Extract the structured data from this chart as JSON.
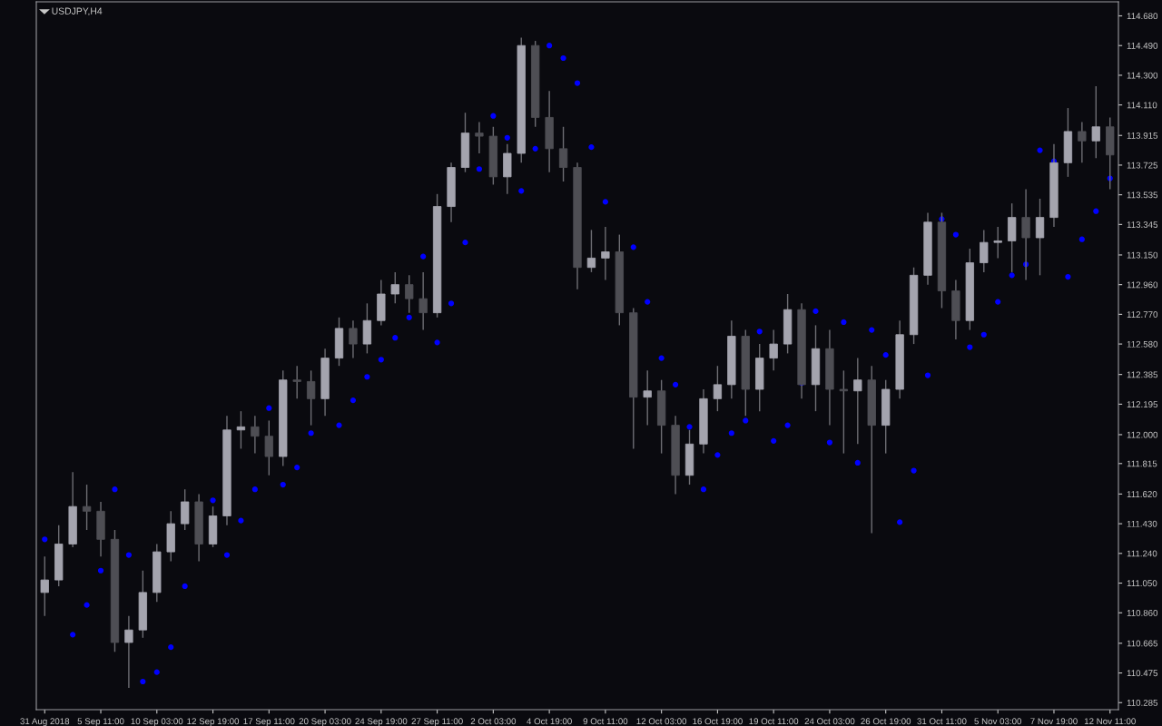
{
  "chart_data": {
    "type": "candlestick",
    "title": "USDJPY,H4",
    "categories": [
      "31 Aug 2018",
      null,
      null,
      null,
      "5 Sep 11:00",
      null,
      null,
      null,
      "10 Sep 03:00",
      null,
      null,
      null,
      "12 Sep 19:00",
      null,
      null,
      null,
      "17 Sep 11:00",
      null,
      null,
      null,
      "20 Sep 03:00",
      null,
      null,
      null,
      "24 Sep 19:00",
      null,
      null,
      null,
      "27 Sep 11:00",
      null,
      null,
      null,
      "2 Oct 03:00",
      null,
      null,
      null,
      "4 Oct 19:00",
      null,
      null,
      null,
      "9 Oct 11:00",
      null,
      null,
      null,
      "12 Oct 03:00",
      null,
      null,
      null,
      "16 Oct 19:00",
      null,
      null,
      null,
      "19 Oct 11:00",
      null,
      null,
      null,
      "24 Oct 03:00",
      null,
      null,
      null,
      "26 Oct 19:00",
      null,
      null,
      null,
      "31 Oct 11:00",
      null,
      null,
      null,
      "5 Nov 03:00",
      null,
      null,
      null,
      "7 Nov 19:00",
      null,
      null,
      null,
      "12 Nov 11:00"
    ],
    "ohlc": [
      [
        110.99,
        111.22,
        110.84,
        111.07
      ],
      [
        111.07,
        111.42,
        111.03,
        111.3
      ],
      [
        111.3,
        111.76,
        111.28,
        111.54
      ],
      [
        111.54,
        111.68,
        111.39,
        111.51
      ],
      [
        111.51,
        111.57,
        111.22,
        111.33
      ],
      [
        111.33,
        111.39,
        110.61,
        110.67
      ],
      [
        110.67,
        110.84,
        110.38,
        110.75
      ],
      [
        110.75,
        111.13,
        110.7,
        110.99
      ],
      [
        110.99,
        111.3,
        110.93,
        111.25
      ],
      [
        111.25,
        111.51,
        111.19,
        111.43
      ],
      [
        111.43,
        111.65,
        111.39,
        111.57
      ],
      [
        111.57,
        111.62,
        111.19,
        111.3
      ],
      [
        111.3,
        111.54,
        111.28,
        111.48
      ],
      [
        111.48,
        112.12,
        111.42,
        112.03
      ],
      [
        112.03,
        112.15,
        111.91,
        112.05
      ],
      [
        112.05,
        112.12,
        111.88,
        111.99
      ],
      [
        111.99,
        112.09,
        111.74,
        111.86
      ],
      [
        111.86,
        112.41,
        111.8,
        112.35
      ],
      [
        112.35,
        112.44,
        112.23,
        112.34
      ],
      [
        112.34,
        112.41,
        112.06,
        112.23
      ],
      [
        112.23,
        112.55,
        112.12,
        112.49
      ],
      [
        112.49,
        112.75,
        112.44,
        112.68
      ],
      [
        112.68,
        112.73,
        112.49,
        112.58
      ],
      [
        112.58,
        112.84,
        112.52,
        112.73
      ],
      [
        112.73,
        112.99,
        112.7,
        112.9
      ],
      [
        112.9,
        113.04,
        112.84,
        112.96
      ],
      [
        112.96,
        113.02,
        112.78,
        112.87
      ],
      [
        112.87,
        113.04,
        112.67,
        112.78
      ],
      [
        112.78,
        113.54,
        112.75,
        113.46
      ],
      [
        113.46,
        113.74,
        113.36,
        113.71
      ],
      [
        113.71,
        114.06,
        113.68,
        113.93
      ],
      [
        113.93,
        114.0,
        113.8,
        113.91
      ],
      [
        113.91,
        113.97,
        113.6,
        113.65
      ],
      [
        113.65,
        113.86,
        113.54,
        113.8
      ],
      [
        113.8,
        114.54,
        113.74,
        114.49
      ],
      [
        114.49,
        114.52,
        113.97,
        114.03
      ],
      [
        114.03,
        114.2,
        113.68,
        113.83
      ],
      [
        113.83,
        113.97,
        113.62,
        113.71
      ],
      [
        113.71,
        113.74,
        112.93,
        113.07
      ],
      [
        113.07,
        113.31,
        113.04,
        113.13
      ],
      [
        113.13,
        113.33,
        112.99,
        113.17
      ],
      [
        113.17,
        113.28,
        112.7,
        112.78
      ],
      [
        112.78,
        112.81,
        111.91,
        112.24
      ],
      [
        112.24,
        112.41,
        112.06,
        112.28
      ],
      [
        112.28,
        112.35,
        111.88,
        112.06
      ],
      [
        112.06,
        112.12,
        111.62,
        111.74
      ],
      [
        111.74,
        112.03,
        111.68,
        111.94
      ],
      [
        111.94,
        112.29,
        111.88,
        112.23
      ],
      [
        112.23,
        112.44,
        112.15,
        112.32
      ],
      [
        112.32,
        112.73,
        112.23,
        112.63
      ],
      [
        112.63,
        112.67,
        112.12,
        112.29
      ],
      [
        112.29,
        112.58,
        112.15,
        112.49
      ],
      [
        112.49,
        112.67,
        112.41,
        112.58
      ],
      [
        112.58,
        112.9,
        112.52,
        112.8
      ],
      [
        112.8,
        112.84,
        112.23,
        112.32
      ],
      [
        112.32,
        112.7,
        112.15,
        112.55
      ],
      [
        112.55,
        112.67,
        112.06,
        112.29
      ],
      [
        112.29,
        112.41,
        111.88,
        112.28
      ],
      [
        112.28,
        112.49,
        111.94,
        112.35
      ],
      [
        112.35,
        112.44,
        111.37,
        112.06
      ],
      [
        112.06,
        112.35,
        111.88,
        112.29
      ],
      [
        112.29,
        112.73,
        112.23,
        112.64
      ],
      [
        112.64,
        113.07,
        112.58,
        113.02
      ],
      [
        113.02,
        113.42,
        112.96,
        113.36
      ],
      [
        113.36,
        113.42,
        112.81,
        112.92
      ],
      [
        112.92,
        112.99,
        112.61,
        112.73
      ],
      [
        112.73,
        113.19,
        112.67,
        113.1
      ],
      [
        113.1,
        113.31,
        113.04,
        113.23
      ],
      [
        113.23,
        113.33,
        113.13,
        113.24
      ],
      [
        113.24,
        113.48,
        113.04,
        113.39
      ],
      [
        113.39,
        113.57,
        112.99,
        113.26
      ],
      [
        113.26,
        113.51,
        113.02,
        113.39
      ],
      [
        113.39,
        113.86,
        113.33,
        113.74
      ],
      [
        113.74,
        114.09,
        113.65,
        113.94
      ],
      [
        113.94,
        114.0,
        113.74,
        113.88
      ],
      [
        113.88,
        114.23,
        113.77,
        113.97
      ],
      [
        113.97,
        114.03,
        113.57,
        113.79
      ]
    ],
    "series": [
      {
        "type": "scatter",
        "color": "#0000ff",
        "values": [
          111.33,
          null,
          110.72,
          110.91,
          111.13,
          111.65,
          111.23,
          110.42,
          110.48,
          110.64,
          111.03,
          null,
          111.58,
          111.23,
          111.45,
          111.65,
          112.17,
          111.68,
          111.79,
          112.01,
          null,
          112.06,
          112.22,
          112.37,
          112.48,
          112.62,
          112.75,
          113.14,
          112.59,
          112.84,
          113.23,
          113.7,
          114.04,
          113.9,
          113.56,
          113.83,
          114.49,
          114.41,
          114.25,
          113.84,
          113.49,
          null,
          113.2,
          112.85,
          112.49,
          112.32,
          112.05,
          111.65,
          111.87,
          112.01,
          112.09,
          112.66,
          111.96,
          112.06,
          112.33,
          112.79,
          111.95,
          112.72,
          111.82,
          112.67,
          112.51,
          111.44,
          111.77,
          112.38,
          113.38,
          113.28,
          112.56,
          112.64,
          112.85,
          113.02,
          113.09,
          113.82,
          113.75,
          113.01,
          113.25,
          113.43,
          113.64
        ]
      }
    ],
    "ylim": [
      110.24,
      114.77
    ],
    "yticks": [
      {
        "value": 110.285,
        "label": "110.285"
      },
      {
        "value": 110.475,
        "label": "110.475"
      },
      {
        "value": 110.665,
        "label": "110.665"
      },
      {
        "value": 110.86,
        "label": "110.860"
      },
      {
        "value": 111.05,
        "label": "111.050"
      },
      {
        "value": 111.24,
        "label": "111.240"
      },
      {
        "value": 111.43,
        "label": "111.430"
      },
      {
        "value": 111.62,
        "label": "111.620"
      },
      {
        "value": 111.815,
        "label": "111.815"
      },
      {
        "value": 112.0,
        "label": "112.000"
      },
      {
        "value": 112.195,
        "label": "112.195"
      },
      {
        "value": 112.385,
        "label": "112.385"
      },
      {
        "value": 112.58,
        "label": "112.580"
      },
      {
        "value": 112.77,
        "label": "112.770"
      },
      {
        "value": 112.96,
        "label": "112.960"
      },
      {
        "value": 113.15,
        "label": "113.150"
      },
      {
        "value": 113.345,
        "label": "113.345"
      },
      {
        "value": 113.535,
        "label": "113.535"
      },
      {
        "value": 113.725,
        "label": "113.725"
      },
      {
        "value": 113.915,
        "label": "113.915"
      },
      {
        "value": 114.11,
        "label": "114.110"
      },
      {
        "value": 114.3,
        "label": "114.300"
      },
      {
        "value": 114.49,
        "label": "114.490"
      },
      {
        "value": 114.68,
        "label": "114.680"
      }
    ],
    "marker": "circle",
    "grid": false,
    "legend": false
  }
}
